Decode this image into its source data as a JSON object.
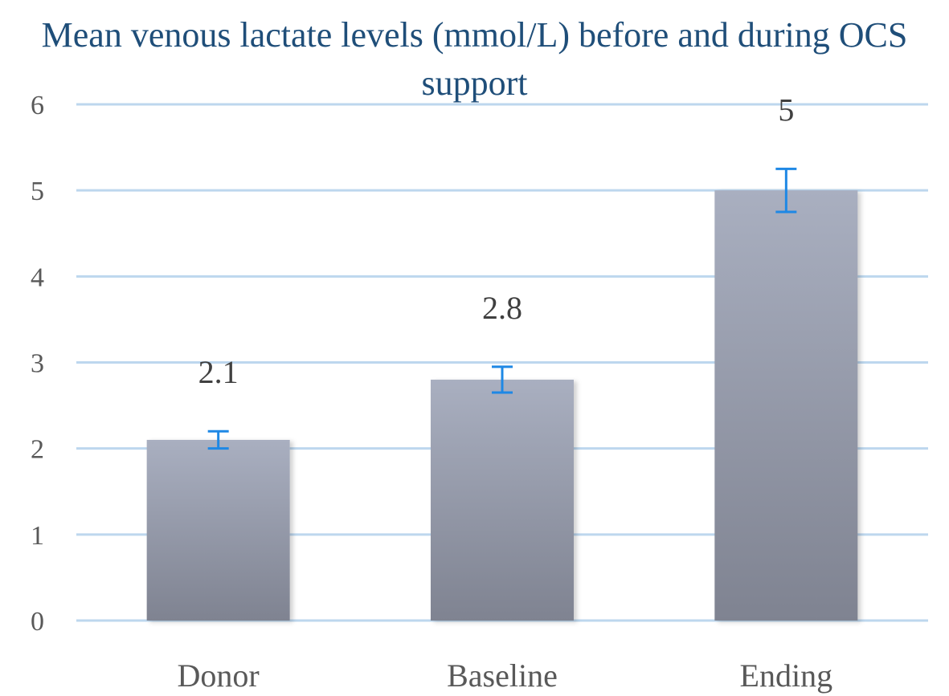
{
  "chart_data": {
    "type": "bar",
    "title": "Mean venous lactate levels (mmol/L) before and during OCS support",
    "categories": [
      "Donor",
      "Baseline",
      "Ending"
    ],
    "values": [
      2.1,
      2.8,
      5
    ],
    "data_labels": [
      "2.1",
      "2.8",
      "5"
    ],
    "error_bars": [
      0.1,
      0.15,
      0.25
    ],
    "ylim": [
      0,
      6
    ],
    "yticks": [
      "0",
      "1",
      "2",
      "3",
      "4",
      "5",
      "6"
    ],
    "grid": true,
    "colors": {
      "bar_top": "#a9afc0",
      "bar_bottom": "#7f8391",
      "grid": "#bdd7ee",
      "error": "#1e88e5",
      "title": "#1f4e79"
    }
  }
}
